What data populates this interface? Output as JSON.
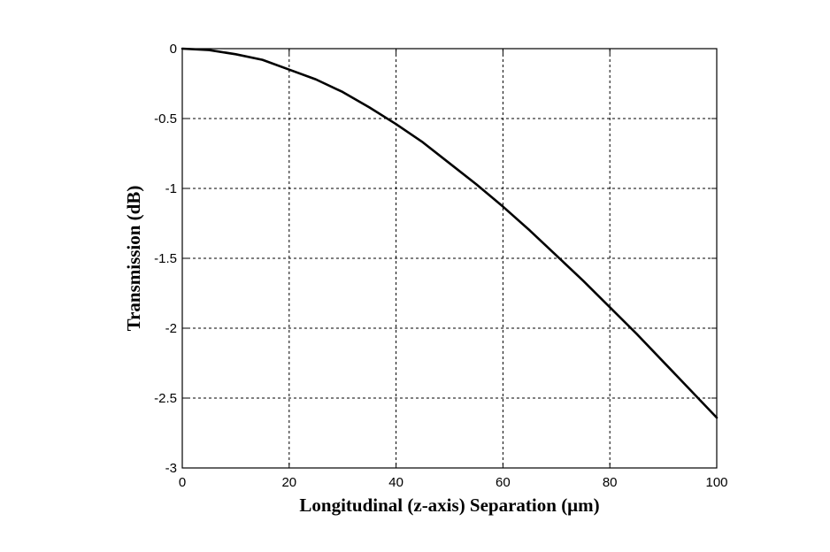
{
  "chart_data": {
    "type": "line",
    "title": "",
    "xlabel": "Longitudinal (z-axis) Separation (μm)",
    "ylabel": "Transmission (dB)",
    "xlim": [
      0,
      100
    ],
    "ylim": [
      -3,
      0
    ],
    "xticks": [
      0,
      20,
      40,
      60,
      80,
      100
    ],
    "yticks": [
      0,
      -0.5,
      -1,
      -1.5,
      -2,
      -2.5,
      -3
    ],
    "xtick_labels": [
      "0",
      "20",
      "40",
      "60",
      "80",
      "100"
    ],
    "ytick_labels": [
      "0",
      "-0.5",
      "-1",
      "-1.5",
      "-2",
      "-2.5",
      "-3"
    ],
    "grid": true,
    "grid_style": "dashed",
    "line_color": "#000000",
    "series": [
      {
        "x": [
          0,
          5,
          10,
          15,
          20,
          25,
          30,
          35,
          40,
          45,
          50,
          55,
          60,
          65,
          70,
          75,
          80,
          85,
          90,
          95,
          100
        ],
        "y": [
          0,
          -0.01,
          -0.04,
          -0.08,
          -0.15,
          -0.22,
          -0.31,
          -0.42,
          -0.54,
          -0.67,
          -0.82,
          -0.97,
          -1.13,
          -1.3,
          -1.48,
          -1.66,
          -1.85,
          -2.04,
          -2.24,
          -2.44,
          -2.64
        ]
      }
    ]
  }
}
